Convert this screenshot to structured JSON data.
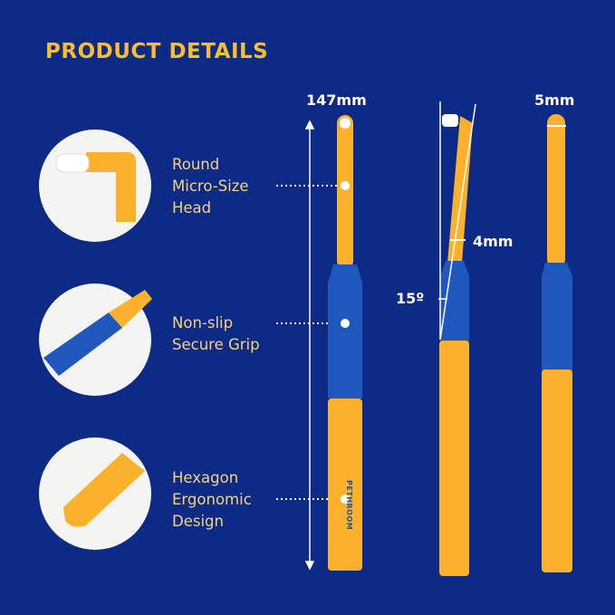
{
  "title": "PRODUCT DETAILS",
  "features": [
    {
      "lines": [
        "Round",
        "Micro-Size",
        "Head"
      ]
    },
    {
      "lines": [
        "Non-slip",
        "Secure Grip"
      ]
    },
    {
      "lines": [
        "Hexagon",
        "Ergonomic",
        "Design"
      ]
    }
  ],
  "dimensions": {
    "length": "147mm",
    "neck_width": "4mm",
    "angle": "15º",
    "head_width": "5mm"
  },
  "brand": "PETHROOM",
  "colors": {
    "background": "#0c2a86",
    "handle_yellow": "#fbb12b",
    "grip_blue": "#1f57bd",
    "title": "#f8bf2c"
  }
}
